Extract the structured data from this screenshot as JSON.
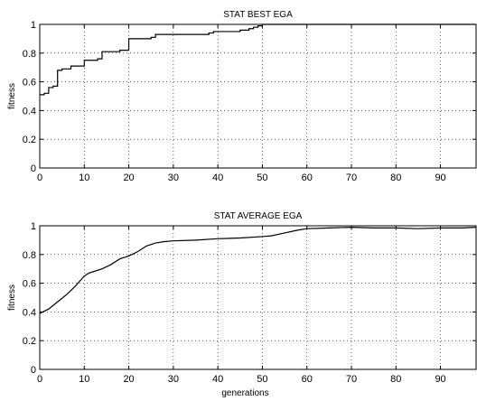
{
  "chart_data": [
    {
      "type": "line",
      "title": "STAT BEST EGA",
      "xlabel": "",
      "ylabel": "fitness",
      "xlim": [
        0,
        98
      ],
      "ylim": [
        0,
        1
      ],
      "xticks": [
        0,
        10,
        20,
        30,
        40,
        50,
        60,
        70,
        80,
        90
      ],
      "yticks": [
        0,
        0.2,
        0.4,
        0.6,
        0.8,
        1
      ],
      "grid": true,
      "step": true,
      "series": [
        {
          "x": [
            0,
            1,
            2,
            3,
            4,
            5,
            7,
            8,
            10,
            13,
            14,
            18,
            20,
            25,
            26,
            38,
            39,
            45,
            47,
            48,
            49,
            50,
            98
          ],
          "values": [
            0.51,
            0.52,
            0.56,
            0.57,
            0.68,
            0.69,
            0.71,
            0.71,
            0.75,
            0.76,
            0.81,
            0.82,
            0.9,
            0.91,
            0.93,
            0.94,
            0.95,
            0.96,
            0.97,
            0.98,
            0.99,
            1.0,
            1.0
          ]
        }
      ]
    },
    {
      "type": "line",
      "title": "STAT AVERAGE EGA",
      "xlabel": "generations",
      "ylabel": "fitness",
      "xlim": [
        0,
        98
      ],
      "ylim": [
        0,
        1
      ],
      "xticks": [
        0,
        10,
        20,
        30,
        40,
        50,
        60,
        70,
        80,
        90
      ],
      "yticks": [
        0,
        0.2,
        0.4,
        0.6,
        0.8,
        1
      ],
      "grid": true,
      "step": false,
      "series": [
        {
          "x": [
            0,
            2,
            4,
            6,
            8,
            10,
            11,
            12,
            14,
            16,
            18,
            20,
            22,
            24,
            26,
            28,
            30,
            35,
            40,
            45,
            50,
            52,
            55,
            58,
            60,
            65,
            70,
            75,
            80,
            85,
            90,
            95,
            98
          ],
          "values": [
            0.39,
            0.42,
            0.47,
            0.52,
            0.58,
            0.65,
            0.67,
            0.68,
            0.7,
            0.73,
            0.77,
            0.79,
            0.82,
            0.86,
            0.88,
            0.89,
            0.895,
            0.9,
            0.91,
            0.915,
            0.925,
            0.93,
            0.95,
            0.97,
            0.98,
            0.985,
            0.99,
            0.985,
            0.985,
            0.98,
            0.985,
            0.985,
            0.99
          ]
        }
      ]
    }
  ]
}
